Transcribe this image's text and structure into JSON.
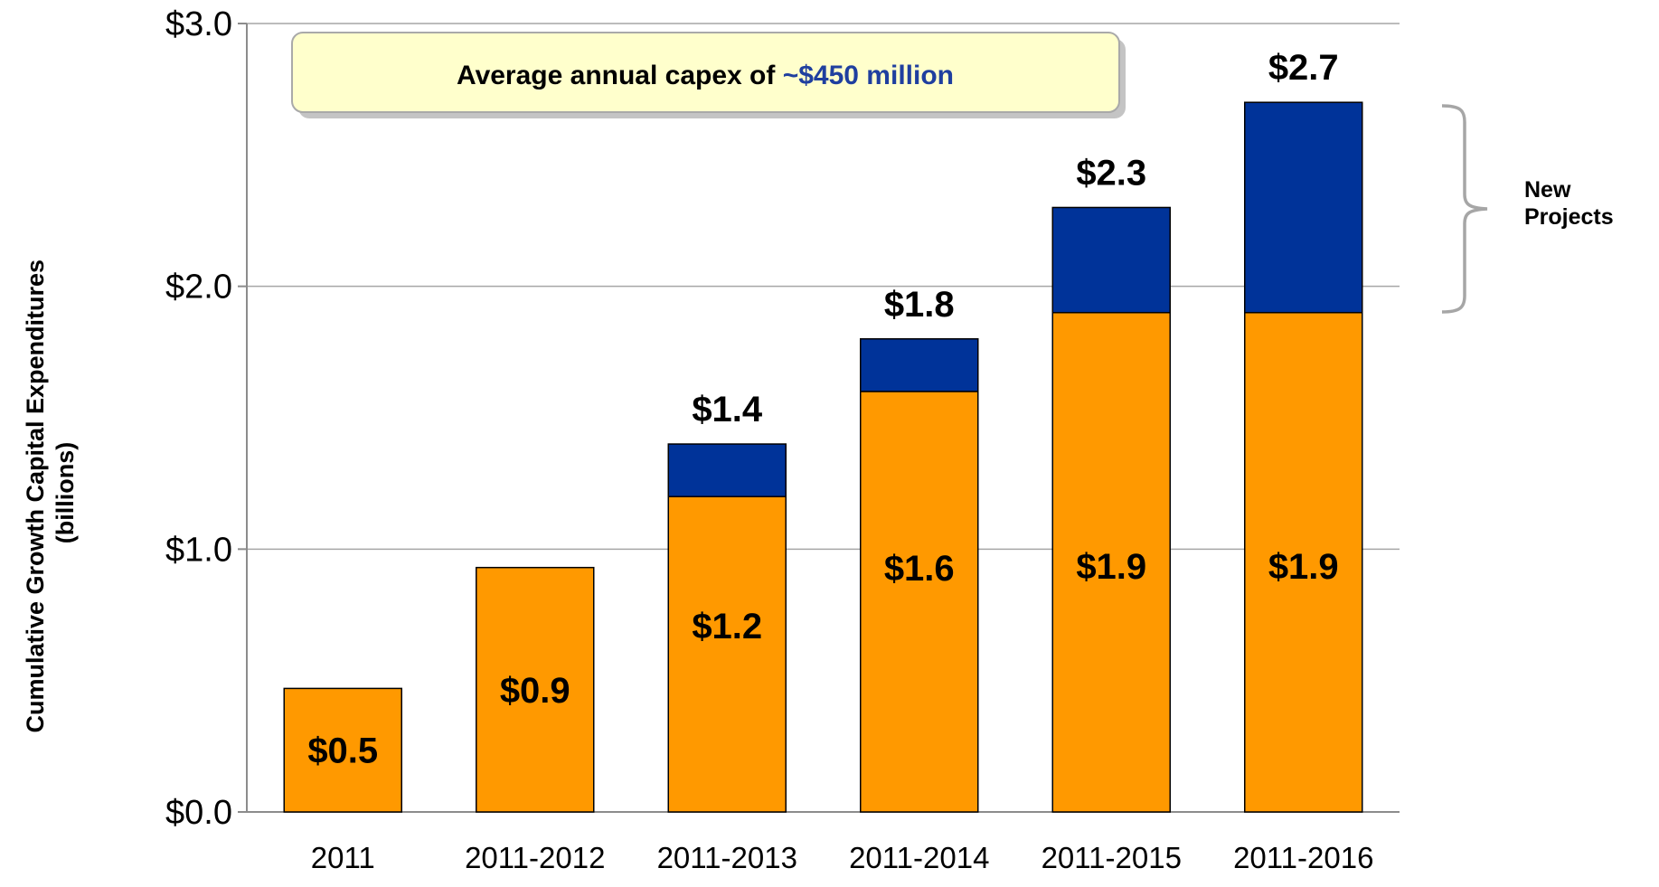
{
  "chart_data": {
    "type": "bar",
    "stacked": true,
    "categories": [
      "2011",
      "2011-2012",
      "2011-2013",
      "2011-2014",
      "2011-2015",
      "2011-2016"
    ],
    "series": [
      {
        "values": [
          0.47,
          0.93,
          1.2,
          1.6,
          1.9,
          1.9
        ],
        "color": "#ff9900"
      },
      {
        "values": [
          0,
          0,
          0.2,
          0.2,
          0.4,
          0.8
        ],
        "color": "#003399"
      }
    ],
    "ylim": [
      0,
      3.0
    ],
    "yticks": [
      0.0,
      1.0,
      2.0,
      3.0
    ],
    "ytick_labels": [
      "$0.0",
      "$1.0",
      "$2.0",
      "$3.0"
    ],
    "ylabel_lines": [
      "Cumulative Growth Capital Expenditures",
      "(billions)"
    ],
    "inner_labels": [
      "$0.5",
      "$0.9",
      "$1.2",
      "$1.6",
      "$1.9",
      "$1.9"
    ],
    "total_labels": [
      "",
      "",
      "$1.4",
      "$1.8",
      "$2.3",
      "$2.7"
    ],
    "grid": true,
    "callout": {
      "prefix": "Average annual capex of ",
      "highlight": "~$450 million",
      "highlight_color": "#1f3f9f",
      "fill": "#ffffcc"
    },
    "brace_annotation": [
      "New",
      "Projects"
    ]
  }
}
